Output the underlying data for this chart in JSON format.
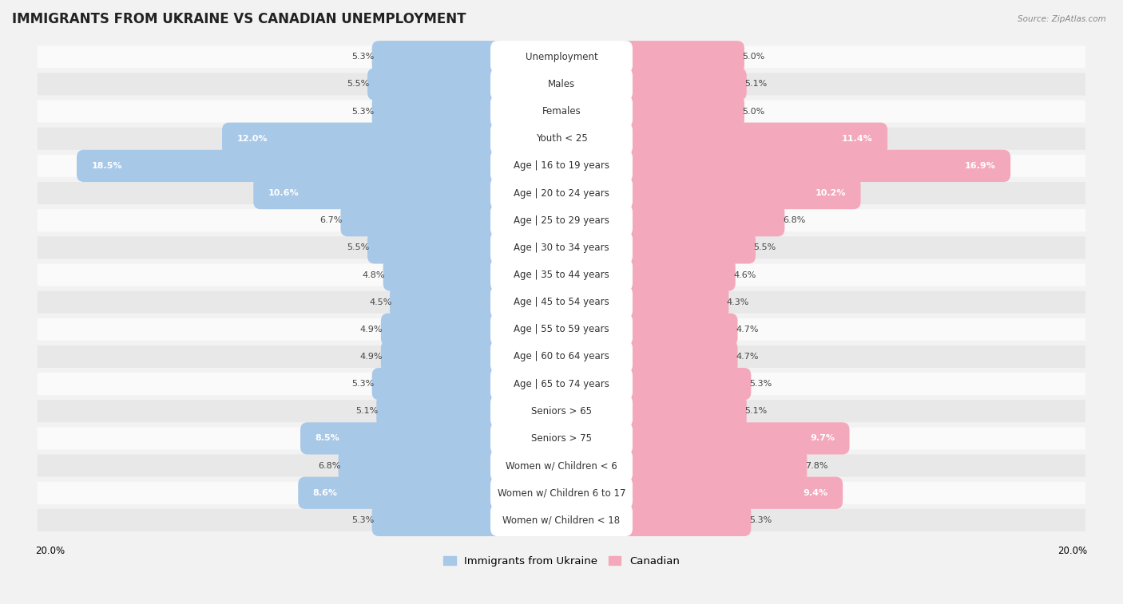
{
  "title": "IMMIGRANTS FROM UKRAINE VS CANADIAN UNEMPLOYMENT",
  "source": "Source: ZipAtlas.com",
  "categories": [
    "Unemployment",
    "Males",
    "Females",
    "Youth < 25",
    "Age | 16 to 19 years",
    "Age | 20 to 24 years",
    "Age | 25 to 29 years",
    "Age | 30 to 34 years",
    "Age | 35 to 44 years",
    "Age | 45 to 54 years",
    "Age | 55 to 59 years",
    "Age | 60 to 64 years",
    "Age | 65 to 74 years",
    "Seniors > 65",
    "Seniors > 75",
    "Women w/ Children < 6",
    "Women w/ Children 6 to 17",
    "Women w/ Children < 18"
  ],
  "ukraine_values": [
    5.3,
    5.5,
    5.3,
    12.0,
    18.5,
    10.6,
    6.7,
    5.5,
    4.8,
    4.5,
    4.9,
    4.9,
    5.3,
    5.1,
    8.5,
    6.8,
    8.6,
    5.3
  ],
  "canada_values": [
    5.0,
    5.1,
    5.0,
    11.4,
    16.9,
    10.2,
    6.8,
    5.5,
    4.6,
    4.3,
    4.7,
    4.7,
    5.3,
    5.1,
    9.7,
    7.8,
    9.4,
    5.3
  ],
  "ukraine_color": "#a8c8e8",
  "canada_color": "#f4a8bc",
  "ukraine_label": "Immigrants from Ukraine",
  "canada_label": "Canadian",
  "axis_max": 20.0,
  "background_color": "#f2f2f2",
  "row_bg_light": "#fafafa",
  "row_bg_dark": "#e8e8e8",
  "title_fontsize": 12,
  "label_fontsize": 8.5,
  "value_fontsize": 8,
  "legend_fontsize": 9.5
}
